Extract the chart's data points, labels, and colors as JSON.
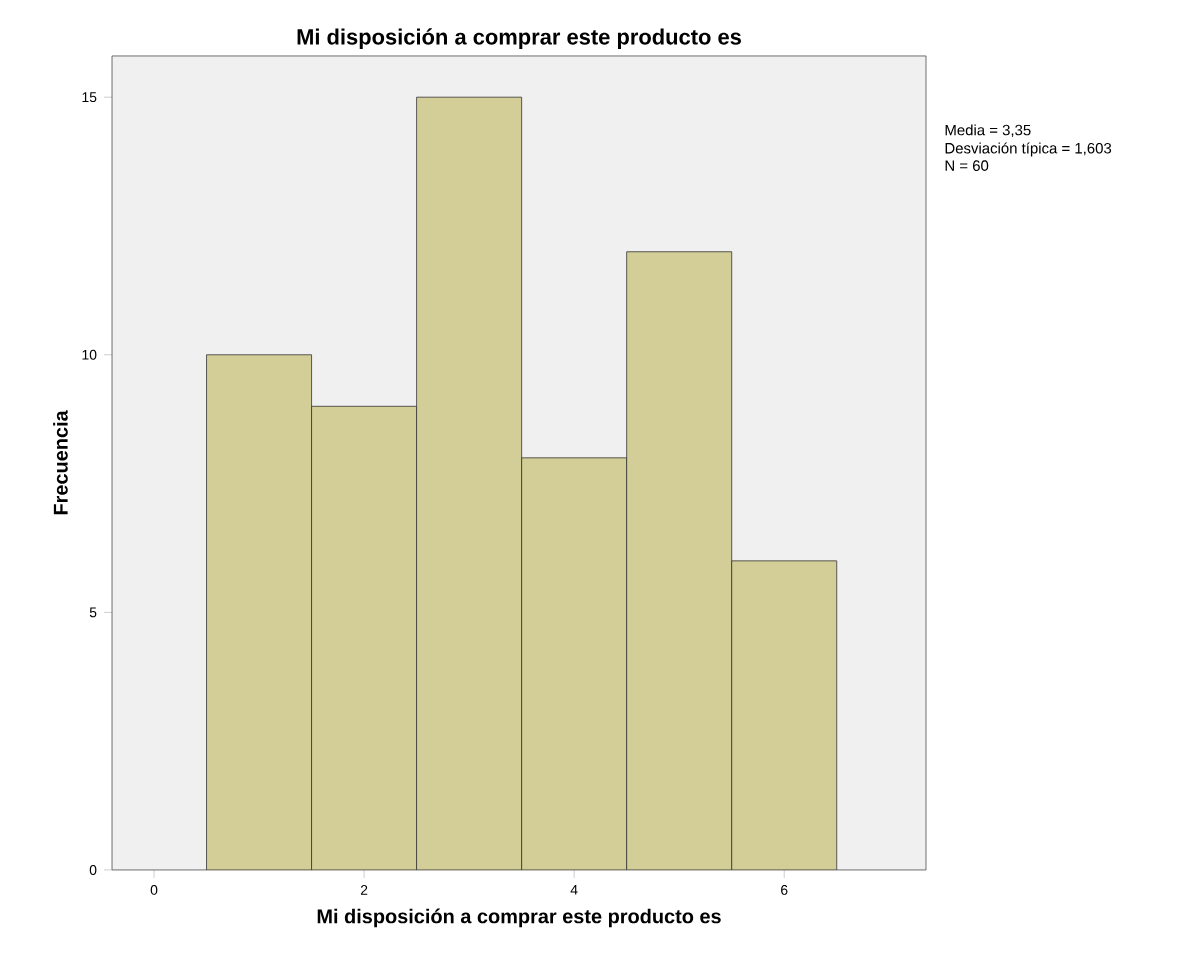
{
  "chart_data": {
    "type": "histogram",
    "title": "Mi disposición a comprar este producto es",
    "xlabel": "Mi disposición a comprar este producto es",
    "ylabel": "Frecuencia",
    "bins": [
      0.5,
      1.5,
      2.5,
      3.5,
      4.5,
      5.5,
      6.5
    ],
    "values": [
      10,
      9,
      15,
      8,
      12,
      6
    ],
    "color": "#d3ce97",
    "xlim": [
      -0.4,
      7.35
    ],
    "ylim": [
      0,
      15.8
    ],
    "xticks": [
      0,
      2,
      4,
      6
    ],
    "yticks": [
      0,
      5,
      10,
      15
    ],
    "annotations": [
      "Media = 3,35",
      "Desviación típica = 1,603",
      "N = 60"
    ]
  }
}
